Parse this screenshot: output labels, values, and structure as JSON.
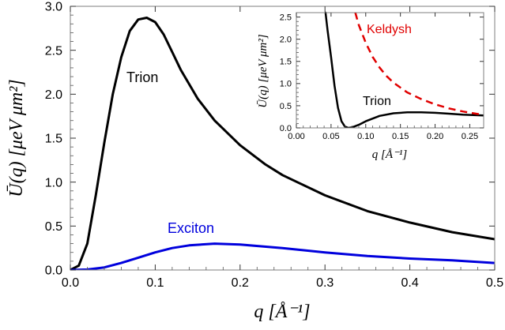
{
  "chart_data": [
    {
      "type": "line",
      "xlabel": "q [Å⁻¹]",
      "ylabel": "Ū(q) [μeV μm²]",
      "xlim": [
        0,
        0.5
      ],
      "ylim": [
        0,
        3.0
      ],
      "xticks": [
        "0.0",
        "0.1",
        "0.2",
        "0.3",
        "0.4",
        "0.5"
      ],
      "yticks": [
        "0.0",
        "0.5",
        "1.0",
        "1.5",
        "2.0",
        "2.5",
        "3.0"
      ],
      "grid": false,
      "legend": "none",
      "series": [
        {
          "name": "Trion",
          "color": "#000000",
          "dash": "solid",
          "x": [
            0.0,
            0.01,
            0.02,
            0.03,
            0.04,
            0.05,
            0.06,
            0.07,
            0.08,
            0.09,
            0.1,
            0.11,
            0.12,
            0.13,
            0.15,
            0.17,
            0.2,
            0.23,
            0.25,
            0.3,
            0.35,
            0.4,
            0.45,
            0.5
          ],
          "y": [
            0.0,
            0.05,
            0.3,
            0.85,
            1.45,
            2.0,
            2.42,
            2.72,
            2.85,
            2.87,
            2.82,
            2.68,
            2.48,
            2.28,
            1.95,
            1.7,
            1.42,
            1.2,
            1.08,
            0.85,
            0.67,
            0.54,
            0.43,
            0.35
          ]
        },
        {
          "name": "Exciton",
          "color": "#0000dd",
          "dash": "solid",
          "x": [
            0.0,
            0.02,
            0.04,
            0.06,
            0.08,
            0.1,
            0.12,
            0.14,
            0.17,
            0.2,
            0.25,
            0.3,
            0.35,
            0.4,
            0.45,
            0.5
          ],
          "y": [
            0.0,
            0.005,
            0.03,
            0.08,
            0.14,
            0.2,
            0.25,
            0.28,
            0.3,
            0.29,
            0.25,
            0.2,
            0.16,
            0.13,
            0.11,
            0.08
          ]
        }
      ],
      "annotations": [
        {
          "text": "Trion",
          "color": "#000000"
        },
        {
          "text": "Exciton",
          "color": "#0000dd"
        }
      ]
    },
    {
      "type": "line",
      "xlabel": "q [Å⁻¹]",
      "ylabel": "Ū(q) [μeV μm²]",
      "xlim": [
        0,
        0.27
      ],
      "ylim": [
        0,
        2.6
      ],
      "xticks": [
        "0.00",
        "0.05",
        "0.10",
        "0.15",
        "0.20",
        "0.25"
      ],
      "yticks": [
        "0.0",
        "0.5",
        "1.0",
        "1.5",
        "2.0",
        "2.5"
      ],
      "grid": false,
      "legend": "none",
      "series": [
        {
          "name": "Trion",
          "color": "#000000",
          "dash": "solid",
          "x": [
            0.042,
            0.045,
            0.05,
            0.055,
            0.06,
            0.065,
            0.07,
            0.075,
            0.08,
            0.09,
            0.1,
            0.12,
            0.14,
            0.16,
            0.18,
            0.2,
            0.22,
            0.24,
            0.27
          ],
          "y": [
            2.6,
            2.2,
            1.6,
            0.95,
            0.45,
            0.15,
            0.03,
            0.0,
            0.01,
            0.07,
            0.15,
            0.27,
            0.33,
            0.35,
            0.35,
            0.34,
            0.32,
            0.3,
            0.28
          ]
        },
        {
          "name": "Keldysh",
          "color": "#e00000",
          "dash": "dashed",
          "x": [
            0.085,
            0.09,
            0.1,
            0.11,
            0.12,
            0.13,
            0.14,
            0.16,
            0.18,
            0.2,
            0.22,
            0.24,
            0.27
          ],
          "y": [
            2.6,
            2.32,
            1.92,
            1.6,
            1.36,
            1.17,
            1.02,
            0.8,
            0.65,
            0.53,
            0.44,
            0.37,
            0.29
          ]
        }
      ],
      "annotations": [
        {
          "text": "Trion",
          "color": "#000000"
        },
        {
          "text": "Keldysh",
          "color": "#e00000"
        }
      ]
    }
  ]
}
